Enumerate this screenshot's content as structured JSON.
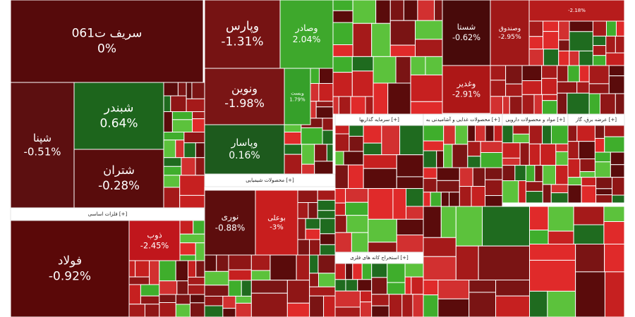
{
  "chart_data": {
    "type": "treemap",
    "tiles": [
      {
        "name": "سریف ت061",
        "value": 0,
        "value_label": "0%",
        "color": "#560a0b"
      },
      {
        "name": "شپنا",
        "value": -0.51,
        "value_label": "-0.51%",
        "color": "#5c0f10"
      },
      {
        "name": "شبندر",
        "value": 0.64,
        "value_label": "0.64%",
        "color": "#1d651c"
      },
      {
        "name": "شتران",
        "value": -0.28,
        "value_label": "-0.28%",
        "color": "#590c0c"
      },
      {
        "name": "فولاد",
        "value": -0.92,
        "value_label": "-0.92%",
        "color": "#5a0808"
      },
      {
        "name": "وپارس",
        "value": -1.31,
        "value_label": "-1.31%",
        "color": "#761313"
      },
      {
        "name": "وصادر",
        "value": 2.04,
        "value_label": "2.04%",
        "color": "#3ea82c"
      },
      {
        "name": "ونوین",
        "value": -1.98,
        "value_label": "-1.98%",
        "color": "#7a1515"
      },
      {
        "name": "وپاسار",
        "value": 0.16,
        "value_label": "0.16%",
        "color": "#1d5a1d"
      },
      {
        "name": "شستا",
        "value": -0.62,
        "value_label": "-0.62%",
        "color": "#480a0a"
      },
      {
        "name": "وصندوق",
        "value": -2.95,
        "value_label": "-2.95%",
        "color": "#a01818"
      },
      {
        "value": -2.18,
        "value_label": "-2.18%",
        "color": "#b71c1c"
      },
      {
        "name": "نوری",
        "value": -0.88,
        "value_label": "-0.88%",
        "color": "#5d0d0d"
      },
      {
        "name": "بوعلی",
        "value": -3,
        "value_label": "-3%",
        "color": "#c81e1e"
      },
      {
        "name": "ذوب",
        "value": -2.45,
        "value_label": "-2.45%",
        "color": "#c0161c"
      },
      {
        "name": "وغدیر",
        "value": -2.91,
        "value_label": "-2.91%",
        "color": "#ad1717"
      },
      {
        "name": "وبست",
        "value": 1.79,
        "value_label": "1.79%",
        "color": "#36a02a"
      }
    ],
    "sections": [
      "فلزات اساسی [+]",
      "محصولات شیمیایی [+]",
      "سرمایه گذاریها [+]",
      "استخراج کانه های فلزی [+]",
      "محصولات غذایی و آشامیدنی به [+]",
      "مواد و محصولات دارویی [+]",
      "عرضه برق، گاز [+]"
    ]
  }
}
